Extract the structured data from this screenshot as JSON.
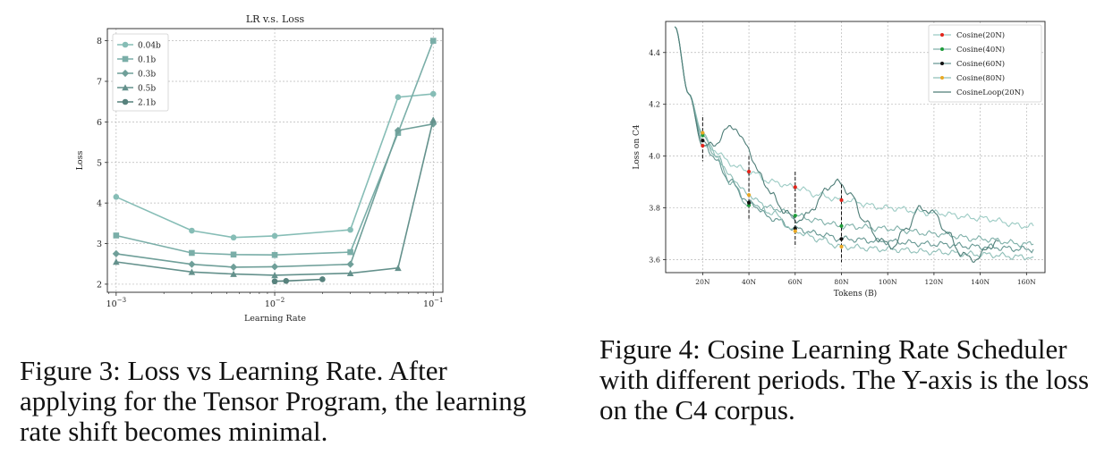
{
  "figure3": {
    "caption": "Figure 3: Loss vs Learning Rate. After applying for the Tensor Program, the learning rate shift becomes minimal.",
    "chart_data": {
      "type": "line",
      "title": "LR v.s. Loss",
      "xlabel": "Learning Rate",
      "ylabel": "Loss",
      "xscale": "log",
      "xlim": [
        0.00088,
        0.115
      ],
      "ylim": [
        1.8,
        8.3
      ],
      "xticks": [
        {
          "value": 0.001,
          "base": "10",
          "exp": "−3"
        },
        {
          "value": 0.01,
          "base": "10",
          "exp": "−2"
        },
        {
          "value": 0.1,
          "base": "10",
          "exp": "−1"
        }
      ],
      "yticks": [
        2,
        3,
        4,
        5,
        6,
        7,
        8
      ],
      "grid": true,
      "legend_position": "top-left",
      "series": [
        {
          "name": "0.04b",
          "marker": "circle",
          "color": "#86bdb6",
          "points": [
            [
              0.001,
              4.15
            ],
            [
              0.003,
              3.32
            ],
            [
              0.0055,
              3.15
            ],
            [
              0.01,
              3.19
            ],
            [
              0.03,
              3.34
            ],
            [
              0.06,
              6.61
            ],
            [
              0.1,
              6.69
            ]
          ]
        },
        {
          "name": "0.1b",
          "marker": "square",
          "color": "#7aaea8",
          "points": [
            [
              0.001,
              3.2
            ],
            [
              0.003,
              2.77
            ],
            [
              0.0055,
              2.73
            ],
            [
              0.01,
              2.72
            ],
            [
              0.03,
              2.79
            ],
            [
              0.06,
              5.73
            ],
            [
              0.1,
              8.0
            ]
          ]
        },
        {
          "name": "0.3b",
          "marker": "diamond",
          "color": "#6f9f99",
          "points": [
            [
              0.001,
              2.75
            ],
            [
              0.003,
              2.49
            ],
            [
              0.0055,
              2.42
            ],
            [
              0.01,
              2.43
            ],
            [
              0.03,
              2.49
            ],
            [
              0.06,
              5.79
            ],
            [
              0.1,
              5.95
            ]
          ]
        },
        {
          "name": "0.5b",
          "marker": "triangle",
          "color": "#64918c",
          "points": [
            [
              0.001,
              2.55
            ],
            [
              0.003,
              2.3
            ],
            [
              0.0055,
              2.25
            ],
            [
              0.01,
              2.22
            ],
            [
              0.03,
              2.27
            ],
            [
              0.06,
              2.4
            ],
            [
              0.1,
              6.05
            ]
          ]
        },
        {
          "name": "2.1b",
          "marker": "circle",
          "color": "#57827d",
          "points": [
            [
              0.01,
              2.07
            ],
            [
              0.0118,
              2.08
            ],
            [
              0.02,
              2.12
            ]
          ]
        }
      ]
    }
  },
  "figure4": {
    "caption": "Figure 4: Cosine Learning Rate Scheduler with different periods. The Y-axis is the loss on the C4 corpus.",
    "chart_data": {
      "type": "line",
      "xlabel": "Tokens (B)",
      "ylabel": "Loss on C4",
      "xlim": [
        4,
        168
      ],
      "ylim": [
        3.55,
        4.52
      ],
      "xticks": [
        {
          "value": 20,
          "label": "20N"
        },
        {
          "value": 40,
          "label": "40N"
        },
        {
          "value": 60,
          "label": "60N"
        },
        {
          "value": 80,
          "label": "80N"
        },
        {
          "value": 100,
          "label": "100N"
        },
        {
          "value": 120,
          "label": "120N"
        },
        {
          "value": 140,
          "label": "140N"
        },
        {
          "value": 160,
          "label": "160N"
        }
      ],
      "yticks": [
        "3.6",
        "3.8",
        "4.0",
        "4.2",
        "4.4"
      ],
      "grid": true,
      "legend_position": "top-right",
      "dashed_markers": [
        20,
        40,
        60,
        80
      ],
      "series": [
        {
          "name": "Cosine(20N)",
          "color": "#9ccbc4",
          "marker_color": "#e3241b",
          "points": [
            [
              8,
              4.5
            ],
            [
              14,
              4.24
            ],
            [
              20,
              4.04
            ],
            [
              26,
              4.02
            ],
            [
              32,
              3.97
            ],
            [
              40,
              3.94
            ],
            [
              50,
              3.9
            ],
            [
              60,
              3.88
            ],
            [
              70,
              3.85
            ],
            [
              80,
              3.83
            ],
            [
              100,
              3.8
            ],
            [
              120,
              3.78
            ],
            [
              140,
              3.76
            ],
            [
              160,
              3.73
            ],
            [
              163,
              3.73
            ]
          ]
        },
        {
          "name": "Cosine(40N)",
          "color": "#7fb0a9",
          "marker_color": "#1e9c3a",
          "points": [
            [
              8,
              4.5
            ],
            [
              14,
              4.24
            ],
            [
              20,
              4.08
            ],
            [
              26,
              4.0
            ],
            [
              32,
              3.9
            ],
            [
              40,
              3.81
            ],
            [
              50,
              3.8
            ],
            [
              60,
              3.77
            ],
            [
              70,
              3.75
            ],
            [
              80,
              3.73
            ],
            [
              100,
              3.72
            ],
            [
              120,
              3.7
            ],
            [
              140,
              3.68
            ],
            [
              160,
              3.66
            ],
            [
              163,
              3.66
            ]
          ]
        },
        {
          "name": "Cosine(60N)",
          "color": "#679893",
          "marker_color": "#111111",
          "points": [
            [
              8,
              4.5
            ],
            [
              14,
              4.24
            ],
            [
              20,
              4.06
            ],
            [
              26,
              3.98
            ],
            [
              32,
              3.9
            ],
            [
              40,
              3.82
            ],
            [
              50,
              3.76
            ],
            [
              60,
              3.72
            ],
            [
              70,
              3.7
            ],
            [
              80,
              3.68
            ],
            [
              100,
              3.67
            ],
            [
              120,
              3.66
            ],
            [
              140,
              3.65
            ],
            [
              160,
              3.64
            ],
            [
              163,
              3.64
            ]
          ]
        },
        {
          "name": "Cosine(80N)",
          "color": "#8fbfb8",
          "marker_color": "#e9a824",
          "points": [
            [
              8,
              4.5
            ],
            [
              14,
              4.24
            ],
            [
              20,
              4.09
            ],
            [
              26,
              4.0
            ],
            [
              32,
              3.92
            ],
            [
              40,
              3.85
            ],
            [
              50,
              3.78
            ],
            [
              60,
              3.71
            ],
            [
              70,
              3.68
            ],
            [
              80,
              3.65
            ],
            [
              100,
              3.64
            ],
            [
              120,
              3.63
            ],
            [
              140,
              3.62
            ],
            [
              160,
              3.61
            ],
            [
              163,
              3.61
            ]
          ]
        },
        {
          "name": "CosineLoop(20N)",
          "color": "#4f7e78",
          "marker_color": "",
          "points": [
            [
              8,
              4.5
            ],
            [
              14,
              4.24
            ],
            [
              20,
              4.04
            ],
            [
              26,
              4.05
            ],
            [
              32,
              4.12
            ],
            [
              38,
              4.06
            ],
            [
              44,
              3.94
            ],
            [
              50,
              3.85
            ],
            [
              56,
              3.78
            ],
            [
              62,
              3.75
            ],
            [
              68,
              3.8
            ],
            [
              74,
              3.88
            ],
            [
              79,
              3.9
            ],
            [
              84,
              3.85
            ],
            [
              90,
              3.75
            ],
            [
              96,
              3.68
            ],
            [
              102,
              3.65
            ],
            [
              108,
              3.72
            ],
            [
              114,
              3.8
            ],
            [
              120,
              3.78
            ],
            [
              126,
              3.7
            ],
            [
              132,
              3.62
            ],
            [
              138,
              3.6
            ],
            [
              144,
              3.65
            ],
            [
              148,
              3.67
            ]
          ]
        }
      ]
    }
  }
}
